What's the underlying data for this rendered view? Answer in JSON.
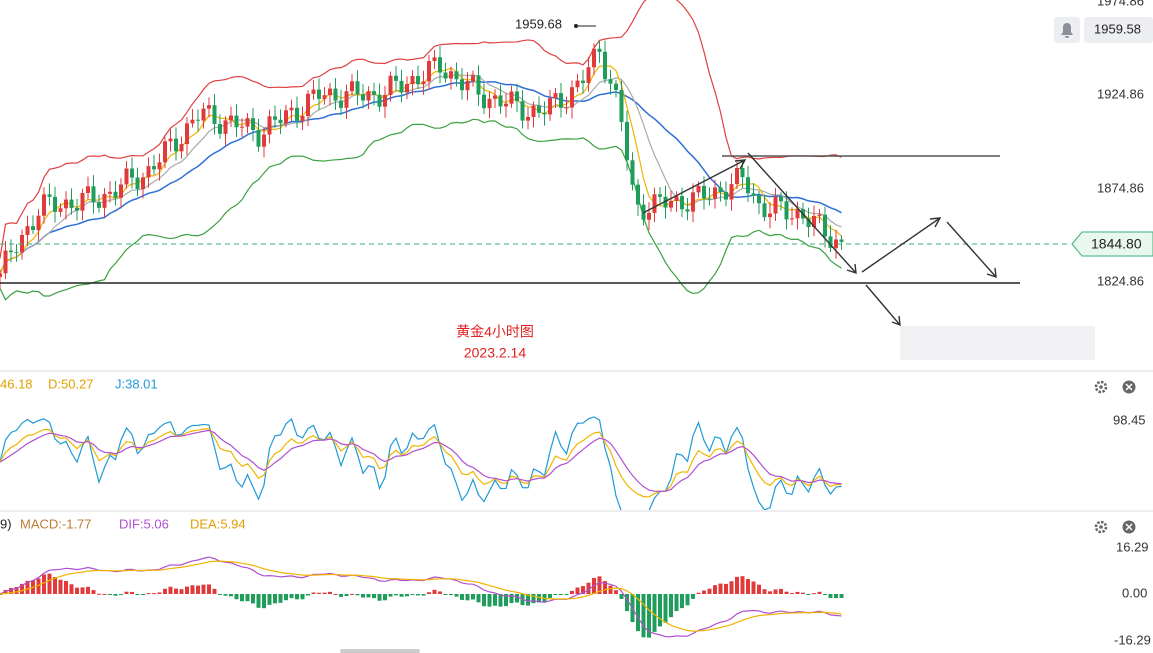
{
  "price_axis": {
    "labels": [
      "1974.86",
      "1924.86",
      "1874.86",
      "1824.86"
    ]
  },
  "last_price": "1959.58",
  "current_price": "1844.80",
  "high_label": "1959.68",
  "caption": {
    "title": "黄金4小时图",
    "date": "2023.2.14"
  },
  "kdj": {
    "legend": [
      "46.18",
      "D:50.27",
      "J:38.01"
    ],
    "axis": [
      "98.45"
    ]
  },
  "macd": {
    "legend": [
      "9)",
      "MACD:-1.77",
      "DIF:5.06",
      "DEA:5.94"
    ],
    "axis": [
      "16.29",
      "0.00",
      "-16.29"
    ]
  }
}
